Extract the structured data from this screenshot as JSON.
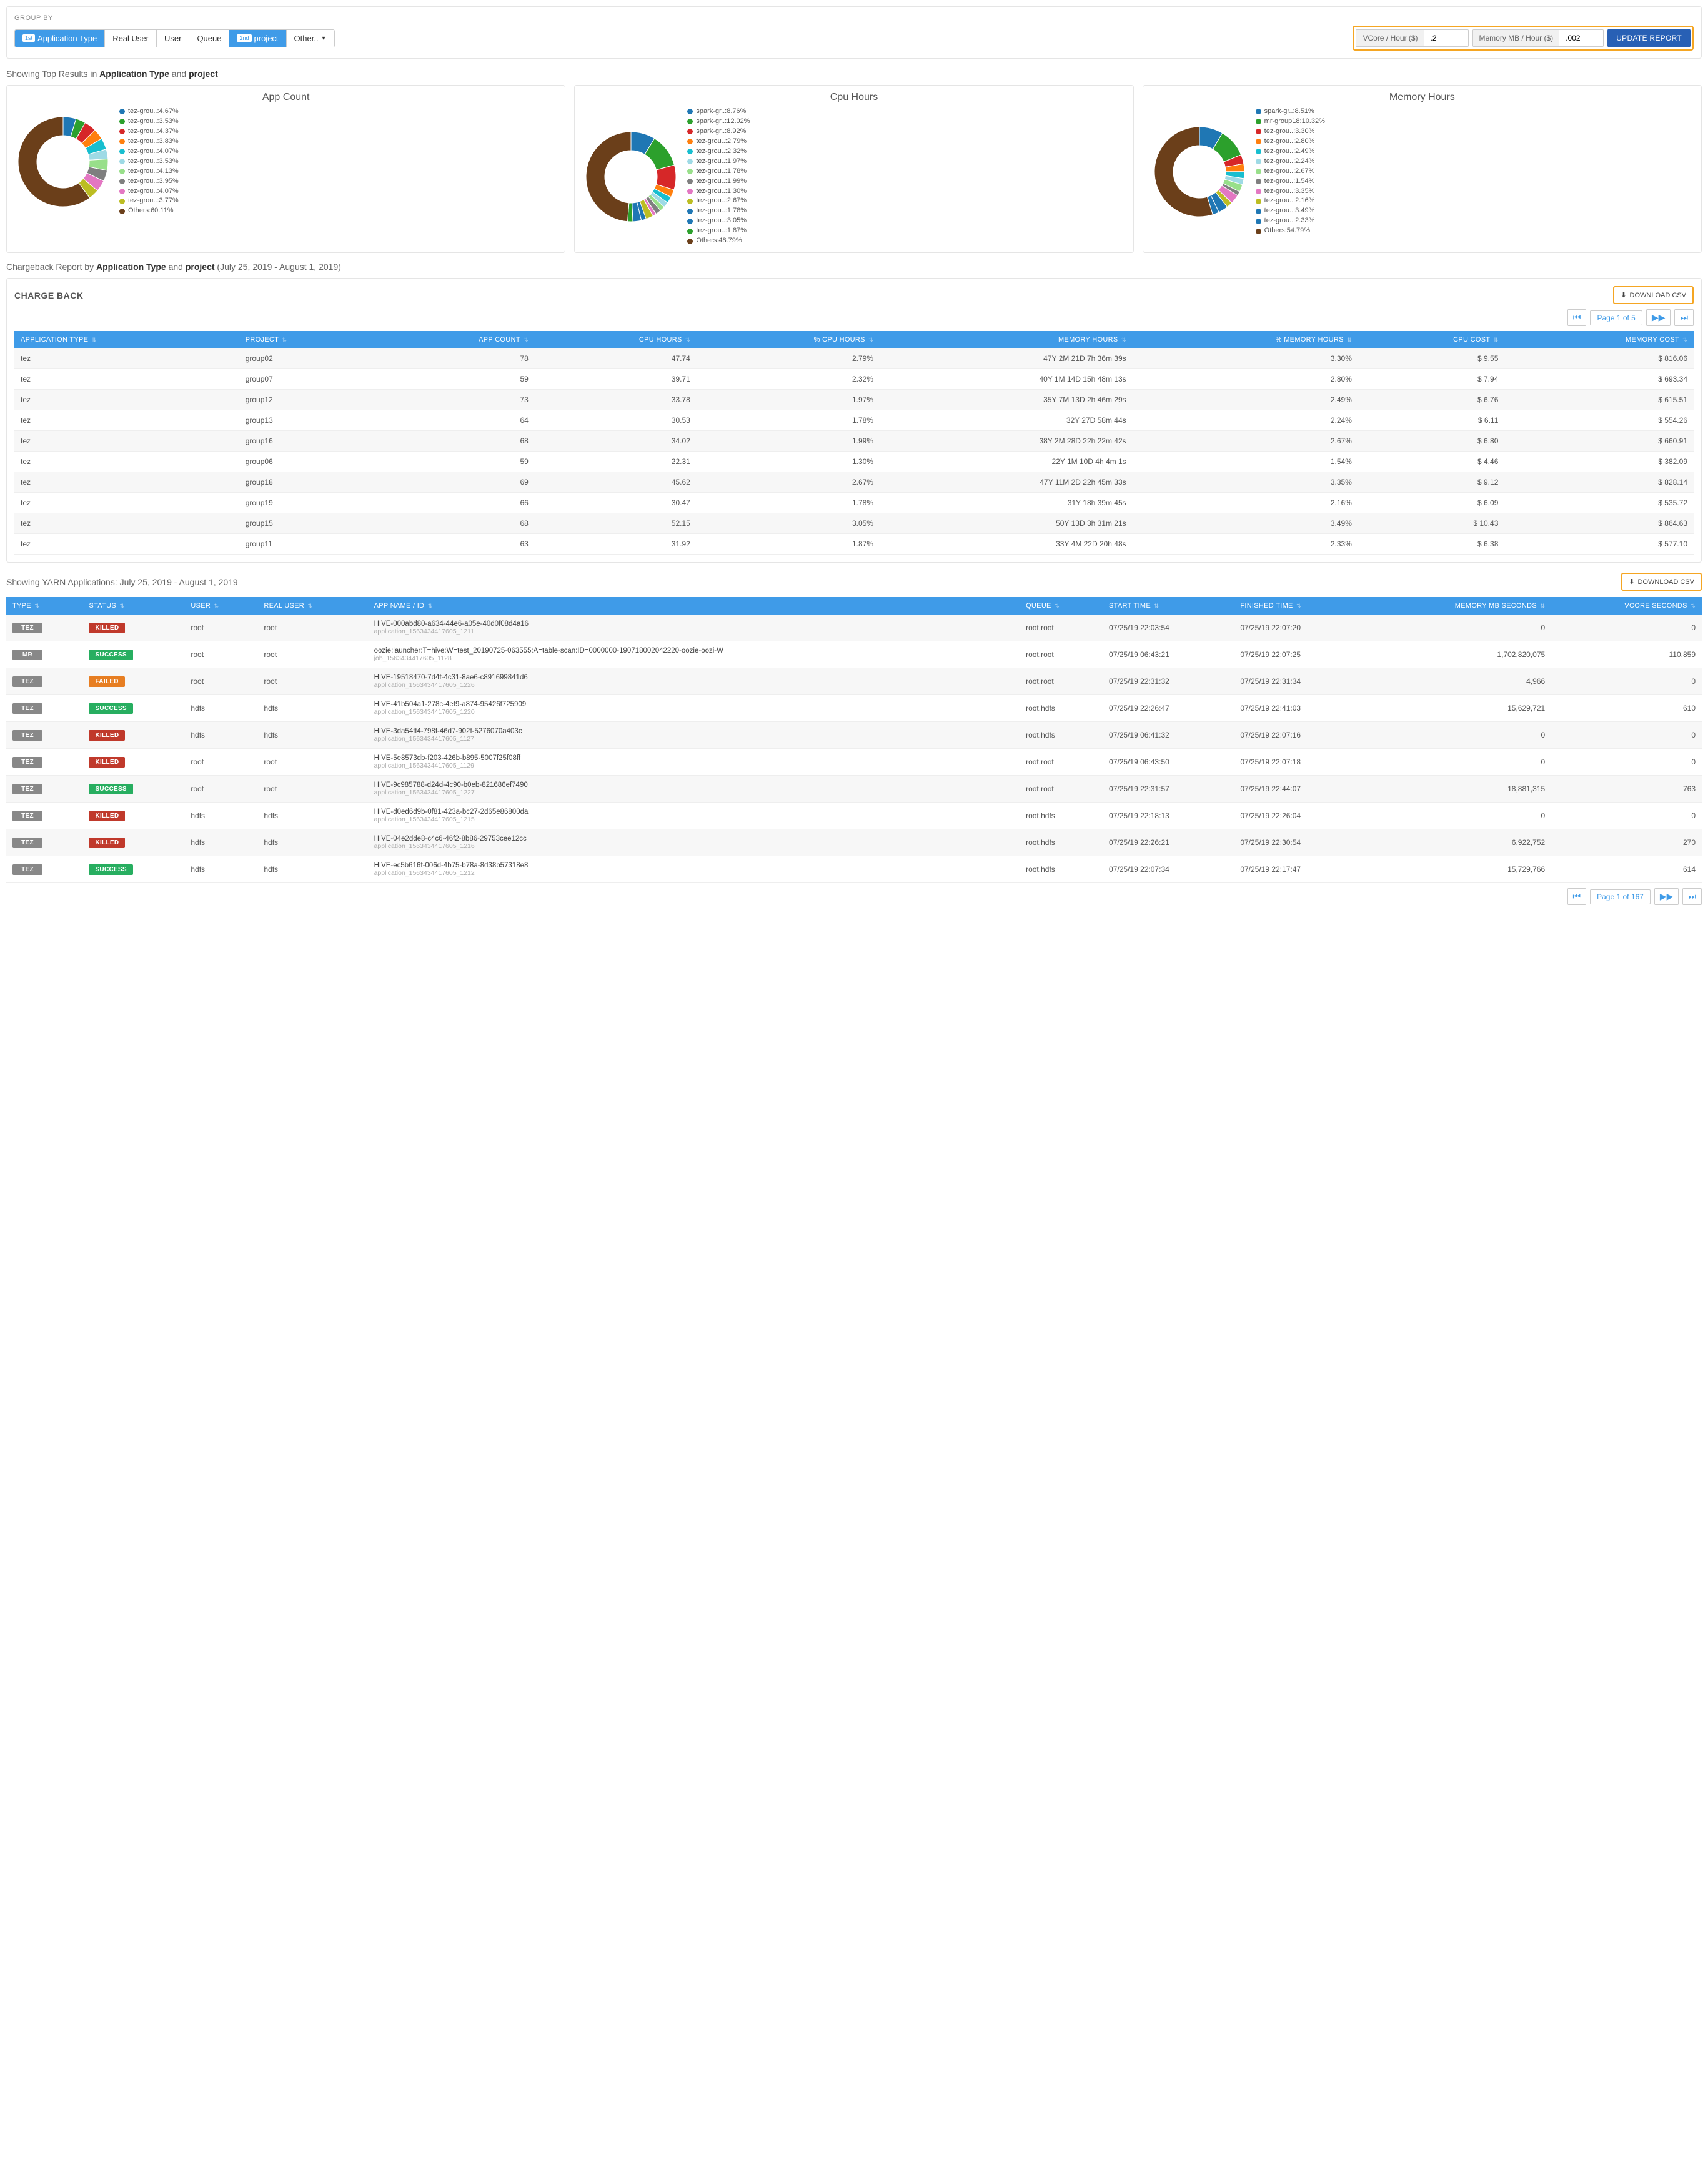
{
  "group_by": {
    "label": "GROUP BY",
    "pills": [
      {
        "badge": "1st",
        "label": "Application Type",
        "active": true
      },
      {
        "label": "Real User",
        "active": false
      },
      {
        "label": "User",
        "active": false
      },
      {
        "label": "Queue",
        "active": false
      },
      {
        "badge": "2nd",
        "label": "project",
        "active": true
      },
      {
        "label": "Other..",
        "active": false,
        "caret": "▼"
      }
    ],
    "vcore_label": "VCore / Hour ($)",
    "vcore_value": ".2",
    "mem_label": "Memory MB / Hour ($)",
    "mem_value": ".002",
    "update_btn": "UPDATE REPORT"
  },
  "top_results": {
    "prefix": "Showing Top Results in ",
    "g1": "Application Type",
    "mid": " and ",
    "g2": "project"
  },
  "donut_colors": {
    "palette": [
      "#1f77b4",
      "#2ca02c",
      "#d62728",
      "#ff7f0e",
      "#17becf",
      "#9edae5",
      "#98df8a",
      "#7f7f7f",
      "#e377c2",
      "#bcbd22",
      "#1f77b4",
      "#6b3f1a"
    ],
    "inner_radius": 42,
    "outer_radius": 72
  },
  "charts": [
    {
      "title": "App Count",
      "slices": [
        {
          "label": "tez-grou..:4.67%",
          "value": 4.67
        },
        {
          "label": "tez-grou..:3.53%",
          "value": 3.53
        },
        {
          "label": "tez-grou..:4.37%",
          "value": 4.37
        },
        {
          "label": "tez-grou..:3.83%",
          "value": 3.83
        },
        {
          "label": "tez-grou..:4.07%",
          "value": 4.07
        },
        {
          "label": "tez-grou..:3.53%",
          "value": 3.53
        },
        {
          "label": "tez-grou..:4.13%",
          "value": 4.13
        },
        {
          "label": "tez-grou..:3.95%",
          "value": 3.95
        },
        {
          "label": "tez-grou..:4.07%",
          "value": 4.07
        },
        {
          "label": "tez-grou..:3.77%",
          "value": 3.77
        },
        {
          "label": "Others:60.11%",
          "value": 60.11
        }
      ]
    },
    {
      "title": "Cpu Hours",
      "slices": [
        {
          "label": "spark-gr..:8.76%",
          "value": 8.76
        },
        {
          "label": "spark-gr..:12.02%",
          "value": 12.02
        },
        {
          "label": "spark-gr..:8.92%",
          "value": 8.92
        },
        {
          "label": "tez-grou..:2.79%",
          "value": 2.79
        },
        {
          "label": "tez-grou..:2.32%",
          "value": 2.32
        },
        {
          "label": "tez-grou..:1.97%",
          "value": 1.97
        },
        {
          "label": "tez-grou..:1.78%",
          "value": 1.78
        },
        {
          "label": "tez-grou..:1.99%",
          "value": 1.99
        },
        {
          "label": "tez-grou..:1.30%",
          "value": 1.3
        },
        {
          "label": "tez-grou..:2.67%",
          "value": 2.67
        },
        {
          "label": "tez-grou..:1.78%",
          "value": 1.78
        },
        {
          "label": "tez-grou..:3.05%",
          "value": 3.05
        },
        {
          "label": "tez-grou..:1.87%",
          "value": 1.87
        },
        {
          "label": "Others:48.79%",
          "value": 48.79
        }
      ]
    },
    {
      "title": "Memory Hours",
      "slices": [
        {
          "label": "spark-gr..:8.51%",
          "value": 8.51
        },
        {
          "label": "mr-group18:10.32%",
          "value": 10.32
        },
        {
          "label": "tez-grou..:3.30%",
          "value": 3.3
        },
        {
          "label": "tez-grou..:2.80%",
          "value": 2.8
        },
        {
          "label": "tez-grou..:2.49%",
          "value": 2.49
        },
        {
          "label": "tez-grou..:2.24%",
          "value": 2.24
        },
        {
          "label": "tez-grou..:2.67%",
          "value": 2.67
        },
        {
          "label": "tez-grou..:1.54%",
          "value": 1.54
        },
        {
          "label": "tez-grou..:3.35%",
          "value": 3.35
        },
        {
          "label": "tez-grou..:2.16%",
          "value": 2.16
        },
        {
          "label": "tez-grou..:3.49%",
          "value": 3.49
        },
        {
          "label": "tez-grou..:2.33%",
          "value": 2.33
        },
        {
          "label": "Others:54.79%",
          "value": 54.79
        }
      ]
    }
  ],
  "chargeback_header": {
    "prefix": "Chargeback Report by ",
    "g1": "Application Type",
    "mid": " and ",
    "g2": "project",
    "suffix": " (July 25, 2019 - August 1, 2019)"
  },
  "chargeback": {
    "title": "CHARGE BACK",
    "download": "DOWNLOAD CSV",
    "page": "Page 1 of 5",
    "columns": [
      "APPLICATION TYPE",
      "PROJECT",
      "APP COUNT",
      "CPU HOURS",
      "% CPU HOURS",
      "MEMORY HOURS",
      "% MEMORY HOURS",
      "CPU COST",
      "MEMORY COST"
    ],
    "rows": [
      [
        "tez",
        "group02",
        "78",
        "47.74",
        "2.79%",
        "47Y 2M 21D 7h 36m 39s",
        "3.30%",
        "$ 9.55",
        "$ 816.06"
      ],
      [
        "tez",
        "group07",
        "59",
        "39.71",
        "2.32%",
        "40Y 1M 14D 15h 48m 13s",
        "2.80%",
        "$ 7.94",
        "$ 693.34"
      ],
      [
        "tez",
        "group12",
        "73",
        "33.78",
        "1.97%",
        "35Y 7M 13D 2h 46m 29s",
        "2.49%",
        "$ 6.76",
        "$ 615.51"
      ],
      [
        "tez",
        "group13",
        "64",
        "30.53",
        "1.78%",
        "32Y 27D 58m 44s",
        "2.24%",
        "$ 6.11",
        "$ 554.26"
      ],
      [
        "tez",
        "group16",
        "68",
        "34.02",
        "1.99%",
        "38Y 2M 28D 22h 22m 42s",
        "2.67%",
        "$ 6.80",
        "$ 660.91"
      ],
      [
        "tez",
        "group06",
        "59",
        "22.31",
        "1.30%",
        "22Y 1M 10D 4h 4m 1s",
        "1.54%",
        "$ 4.46",
        "$ 382.09"
      ],
      [
        "tez",
        "group18",
        "69",
        "45.62",
        "2.67%",
        "47Y 11M 2D 22h 45m 33s",
        "3.35%",
        "$ 9.12",
        "$ 828.14"
      ],
      [
        "tez",
        "group19",
        "66",
        "30.47",
        "1.78%",
        "31Y 18h 39m 45s",
        "2.16%",
        "$ 6.09",
        "$ 535.72"
      ],
      [
        "tez",
        "group15",
        "68",
        "52.15",
        "3.05%",
        "50Y 13D 3h 31m 21s",
        "3.49%",
        "$ 10.43",
        "$ 864.63"
      ],
      [
        "tez",
        "group11",
        "63",
        "31.92",
        "1.87%",
        "33Y 4M 22D 20h 48s",
        "2.33%",
        "$ 6.38",
        "$ 577.10"
      ]
    ]
  },
  "yarn_header": "Showing YARN Applications: July 25, 2019 - August 1, 2019",
  "yarn": {
    "download": "DOWNLOAD CSV",
    "page": "Page 1 of 167",
    "columns": [
      "TYPE",
      "STATUS",
      "USER",
      "REAL USER",
      "APP NAME / ID",
      "QUEUE",
      "START TIME",
      "FINISHED TIME",
      "MEMORY MB SECONDS",
      "VCORE SECONDS"
    ],
    "status_colors": {
      "KILLED": "tag-killed",
      "SUCCESS": "tag-success",
      "FAILED": "tag-failed"
    },
    "rows": [
      {
        "type": "TEZ",
        "status": "KILLED",
        "user": "root",
        "real": "root",
        "name": "HIVE-000abd80-a634-44e6-a05e-40d0f08d4a16",
        "id": "application_1563434417605_1211",
        "queue": "root.root",
        "start": "07/25/19 22:03:54",
        "end": "07/25/19 22:07:20",
        "mem": "0",
        "vcore": "0"
      },
      {
        "type": "MR",
        "status": "SUCCESS",
        "user": "root",
        "real": "root",
        "name": "oozie:launcher:T=hive:W=test_20190725-063555:A=table-scan:ID=0000000-190718002042220-oozie-oozi-W",
        "id": "job_1563434417605_1128",
        "queue": "root.root",
        "start": "07/25/19 06:43:21",
        "end": "07/25/19 22:07:25",
        "mem": "1,702,820,075",
        "vcore": "110,859"
      },
      {
        "type": "TEZ",
        "status": "FAILED",
        "user": "root",
        "real": "root",
        "name": "HIVE-19518470-7d4f-4c31-8ae6-c891699841d6",
        "id": "application_1563434417605_1226",
        "queue": "root.root",
        "start": "07/25/19 22:31:32",
        "end": "07/25/19 22:31:34",
        "mem": "4,966",
        "vcore": "0"
      },
      {
        "type": "TEZ",
        "status": "SUCCESS",
        "user": "hdfs",
        "real": "hdfs",
        "name": "HIVE-41b504a1-278c-4ef9-a874-95426f725909",
        "id": "application_1563434417605_1220",
        "queue": "root.hdfs",
        "start": "07/25/19 22:26:47",
        "end": "07/25/19 22:41:03",
        "mem": "15,629,721",
        "vcore": "610"
      },
      {
        "type": "TEZ",
        "status": "KILLED",
        "user": "hdfs",
        "real": "hdfs",
        "name": "HIVE-3da54ff4-798f-46d7-902f-5276070a403c",
        "id": "application_1563434417605_1127",
        "queue": "root.hdfs",
        "start": "07/25/19 06:41:32",
        "end": "07/25/19 22:07:16",
        "mem": "0",
        "vcore": "0"
      },
      {
        "type": "TEZ",
        "status": "KILLED",
        "user": "root",
        "real": "root",
        "name": "HIVE-5e8573db-f203-426b-b895-5007f25f08ff",
        "id": "application_1563434417605_1129",
        "queue": "root.root",
        "start": "07/25/19 06:43:50",
        "end": "07/25/19 22:07:18",
        "mem": "0",
        "vcore": "0"
      },
      {
        "type": "TEZ",
        "status": "SUCCESS",
        "user": "root",
        "real": "root",
        "name": "HIVE-9c985788-d24d-4c90-b0eb-821686ef7490",
        "id": "application_1563434417605_1227",
        "queue": "root.root",
        "start": "07/25/19 22:31:57",
        "end": "07/25/19 22:44:07",
        "mem": "18,881,315",
        "vcore": "763"
      },
      {
        "type": "TEZ",
        "status": "KILLED",
        "user": "hdfs",
        "real": "hdfs",
        "name": "HIVE-d0ed6d9b-0f81-423a-bc27-2d65e86800da",
        "id": "application_1563434417605_1215",
        "queue": "root.hdfs",
        "start": "07/25/19 22:18:13",
        "end": "07/25/19 22:26:04",
        "mem": "0",
        "vcore": "0"
      },
      {
        "type": "TEZ",
        "status": "KILLED",
        "user": "hdfs",
        "real": "hdfs",
        "name": "HIVE-04e2dde8-c4c6-46f2-8b86-29753cee12cc",
        "id": "application_1563434417605_1216",
        "queue": "root.hdfs",
        "start": "07/25/19 22:26:21",
        "end": "07/25/19 22:30:54",
        "mem": "6,922,752",
        "vcore": "270"
      },
      {
        "type": "TEZ",
        "status": "SUCCESS",
        "user": "hdfs",
        "real": "hdfs",
        "name": "HIVE-ec5b616f-006d-4b75-b78a-8d38b57318e8",
        "id": "application_1563434417605_1212",
        "queue": "root.hdfs",
        "start": "07/25/19 22:07:34",
        "end": "07/25/19 22:17:47",
        "mem": "15,729,766",
        "vcore": "614"
      }
    ]
  }
}
